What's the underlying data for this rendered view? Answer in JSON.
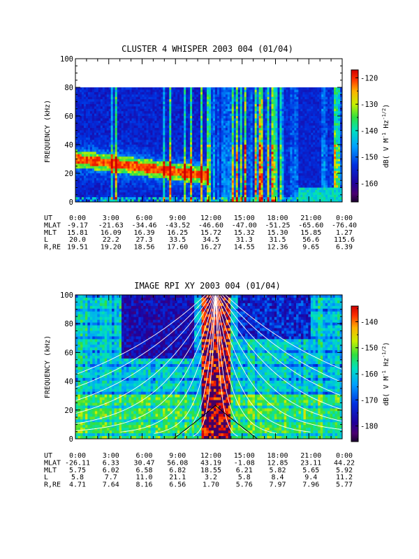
{
  "chart_data": [
    {
      "type": "heatmap",
      "title": "CLUSTER 4 WHISPER 2003 004 (01/04)",
      "ylabel": "FREQUENCY (kHz)",
      "ylim": [
        0,
        100
      ],
      "yticks": [
        "0",
        "20",
        "40",
        "60",
        "80",
        "100"
      ],
      "xlim": [
        "0:00",
        "24:00"
      ],
      "colorbar": {
        "label": "dB( V M",
        "sup1": "-1",
        "mid": " Hz",
        "sup2": "-1/2",
        "end": ")",
        "range": [
          -167,
          -117
        ],
        "ticks": [
          "-120",
          "-130",
          "-140",
          "-150",
          "-160"
        ],
        "tick_values": [
          -120,
          -130,
          -140,
          -150,
          -160
        ]
      },
      "data_top_khz": 80,
      "features": "electron plasma frequency band near 30 kHz at 0:00 decreasing to ~20 kHz by 9:00; broadband bursts after 12:00",
      "ephemeris": {
        "rows": [
          {
            "label": "UT",
            "values": [
              "0:00",
              "3:00",
              "6:00",
              "9:00",
              "12:00",
              "15:00",
              "18:00",
              "21:00",
              "0:00"
            ]
          },
          {
            "label": "MLAT",
            "values": [
              "-9.17",
              "-21.63",
              "-34.46",
              "-43.52",
              "-46.60",
              "-47.00",
              "-51.25",
              "-65.60",
              "-76.40"
            ]
          },
          {
            "label": "MLT",
            "values": [
              "15.81",
              "16.09",
              "16.39",
              "16.25",
              "15.72",
              "15.32",
              "15.30",
              "15.85",
              "1.27"
            ]
          },
          {
            "label": "L",
            "values": [
              "20.0",
              "22.2",
              "27.3",
              "33.5",
              "34.5",
              "31.3",
              "31.5",
              "56.6",
              "115.6"
            ]
          },
          {
            "label": "R,RE",
            "values": [
              "19.51",
              "19.20",
              "18.56",
              "17.60",
              "16.27",
              "14.55",
              "12.36",
              "9.65",
              "6.39"
            ]
          }
        ]
      }
    },
    {
      "type": "heatmap",
      "title": "IMAGE RPI XY 2003 004 (01/04)",
      "ylabel": "FREQUENCY (kHz)",
      "ylim": [
        0,
        100
      ],
      "yticks": [
        "0",
        "20",
        "40",
        "60",
        "80",
        "100"
      ],
      "xlim": [
        "0:00",
        "24:00"
      ],
      "colorbar": {
        "label": "dB( V M",
        "sup1": "-1",
        "mid": " Hz",
        "sup2": "-1/2",
        "end": ")",
        "range": [
          -186,
          -134
        ],
        "ticks": [
          "-140",
          "-150",
          "-160",
          "-170",
          "-180"
        ],
        "tick_values": [
          -140,
          -150,
          -160,
          -170,
          -180
        ]
      },
      "overlays": "white model plasma frequency curves, peaking near perigee around 12:30",
      "ephemeris": {
        "rows": [
          {
            "label": "UT",
            "values": [
              "0:00",
              "3:00",
              "6:00",
              "9:00",
              "12:00",
              "15:00",
              "18:00",
              "21:00",
              "0:00"
            ]
          },
          {
            "label": "MLAT",
            "values": [
              "-26.11",
              "6.33",
              "30.47",
              "56.08",
              "43.19",
              "-1.08",
              "12.85",
              "23.11",
              "44.22"
            ]
          },
          {
            "label": "MLT",
            "values": [
              "5.75",
              "6.02",
              "6.58",
              "6.82",
              "18.55",
              "6.21",
              "5.82",
              "5.65",
              "5.92"
            ]
          },
          {
            "label": "L",
            "values": [
              "5.8",
              "7.7",
              "11.0",
              "21.1",
              "3.2",
              "5.8",
              "8.4",
              "9.4",
              "11.2"
            ]
          },
          {
            "label": "R,RE",
            "values": [
              "4.71",
              "7.64",
              "8.16",
              "6.56",
              "1.70",
              "5.76",
              "7.97",
              "7.96",
              "5.77"
            ]
          }
        ]
      }
    }
  ]
}
